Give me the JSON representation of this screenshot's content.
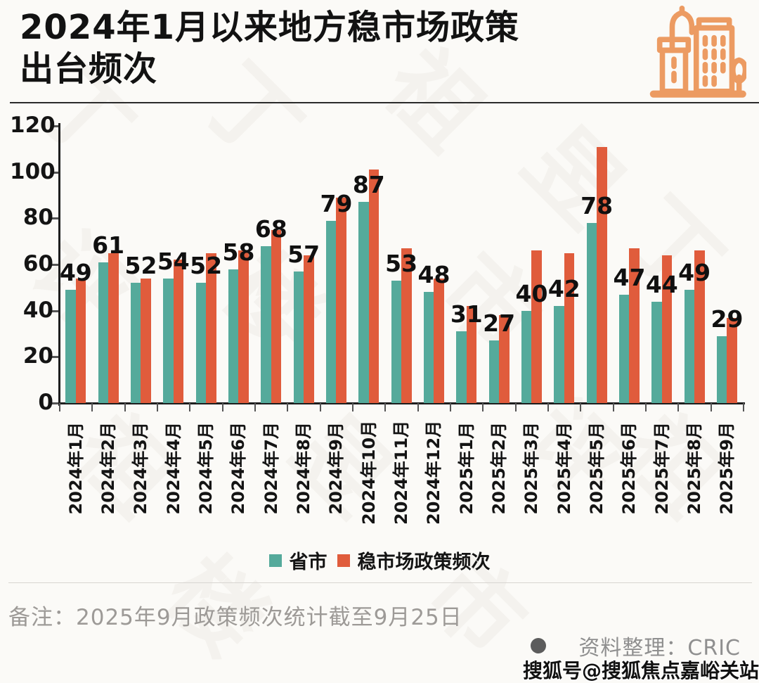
{
  "page": {
    "background": "#FBFAF7"
  },
  "header": {
    "title_line1": "2024年1月以来地方稳市场政策",
    "title_line2": "出台频次",
    "icon": "city-buildings-icon",
    "icon_color": "#EC9B62"
  },
  "chart_data": {
    "type": "bar",
    "title": "2024年1月以来地方稳市场政策出台频次",
    "categories": [
      "2024年1月",
      "2024年2月",
      "2024年3月",
      "2024年4月",
      "2024年5月",
      "2024年6月",
      "2024年7月",
      "2024年8月",
      "2024年9月",
      "2024年10月",
      "2024年11月",
      "2024年12月",
      "2025年1月",
      "2025年2月",
      "2025年3月",
      "2025年4月",
      "2025年5月",
      "2025年6月",
      "2025年7月",
      "2025年8月",
      "2025年9月"
    ],
    "series": [
      {
        "name": "省市",
        "color": "#55AA9B",
        "values": [
          49,
          61,
          52,
          54,
          52,
          58,
          68,
          57,
          79,
          87,
          53,
          48,
          31,
          27,
          40,
          42,
          78,
          47,
          44,
          49,
          29
        ],
        "data_labels_shown": true
      },
      {
        "name": "稳市场政策频次",
        "color": "#E05C3C",
        "values": [
          54,
          65,
          54,
          62,
          65,
          66,
          75,
          64,
          89,
          101,
          67,
          54,
          42,
          38,
          66,
          65,
          111,
          67,
          64,
          66,
          37
        ],
        "data_labels_shown": false
      }
    ],
    "xlabel": "",
    "ylabel": "",
    "ylim": [
      0,
      120
    ],
    "yticks": [
      0,
      20,
      40,
      60,
      80,
      100,
      120
    ],
    "grid": false,
    "legend_position": "bottom",
    "bar_label_values": [
      49,
      61,
      52,
      54,
      52,
      58,
      68,
      57,
      79,
      87,
      53,
      48,
      31,
      27,
      40,
      42,
      78,
      47,
      44,
      49,
      29
    ]
  },
  "legend": {
    "items": [
      {
        "label": "省市",
        "color": "#55AA9B"
      },
      {
        "label": "稳市场政策频次",
        "color": "#E05C3C"
      }
    ]
  },
  "footer": {
    "note": "备注：2025年9月政策频次统计截至9月25日",
    "source_label": "资料整理：CRIC",
    "watermark_bottom": "搜狐号@搜狐焦点嘉峪关站"
  },
  "watermark": {
    "text": "丁祖昱评楼市"
  }
}
